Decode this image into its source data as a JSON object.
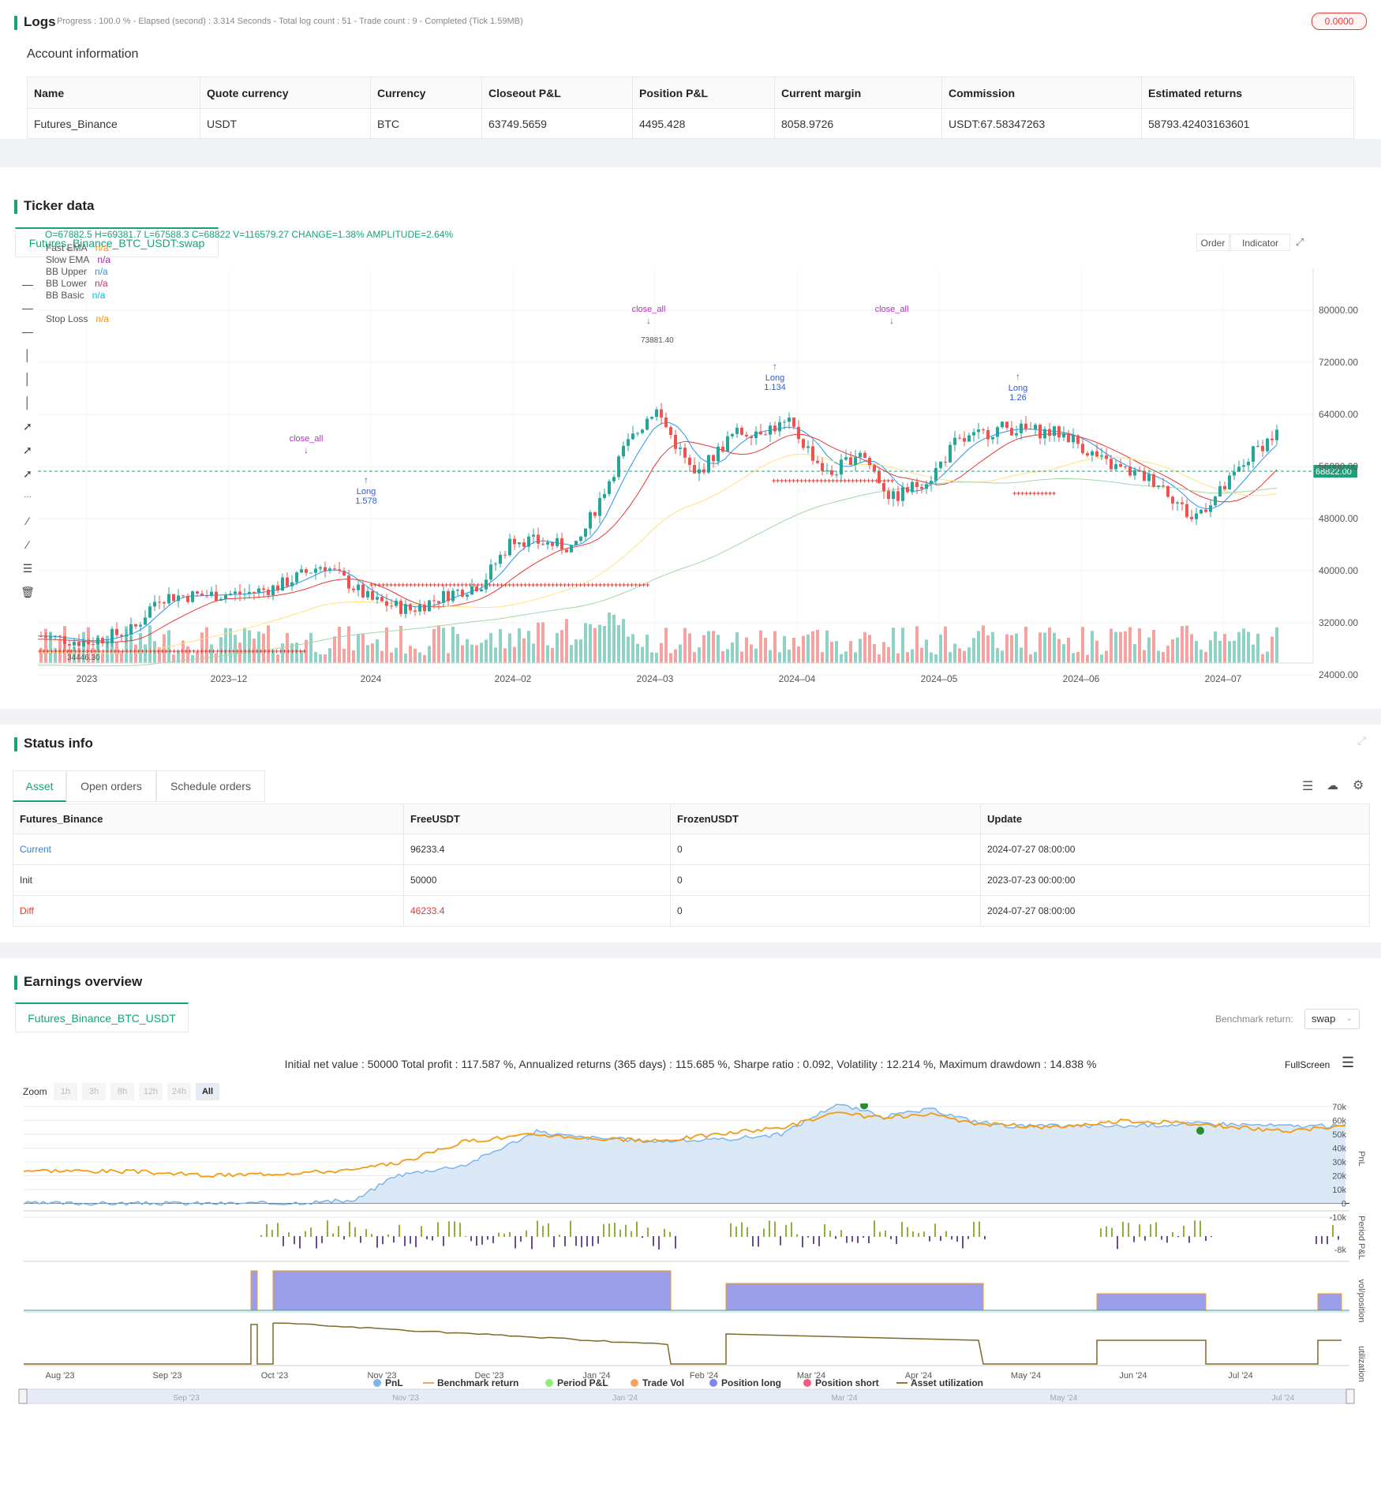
{
  "logs": {
    "title": "Logs",
    "progress": "Progress : 100.0 % - Elapsed (second) : 3.314  Seconds - Total log count : 51 - Trade count : 9 - Completed (Tick 1.59MB)",
    "badge": "0.0000"
  },
  "account": {
    "title": "Account information",
    "headers": [
      "Name",
      "Quote currency",
      "Currency",
      "Closeout P&L",
      "Position P&L",
      "Current margin",
      "Commission",
      "Estimated returns"
    ],
    "row": [
      "Futures_Binance",
      "USDT",
      "BTC",
      "63749.5659",
      "4495.428",
      "8058.9726",
      "USDT:67.58347263",
      "58793.42403163601"
    ]
  },
  "ticker": {
    "title": "Ticker data",
    "tab": "Futures_Binance_BTC_USDT:swap",
    "ohlc": "O=67882.5 H=69381.7 L=67588.3 C=68822 V=116579.27 CHANGE=1.38% AMPLITUDE=2.64%",
    "legend": [
      {
        "name": "Fast EMA",
        "value": "n/a",
        "color": "#f7931a"
      },
      {
        "name": "Slow EMA",
        "value": "n/a",
        "color": "#9c27b0"
      },
      {
        "name": "BB Upper",
        "value": "n/a",
        "color": "#2196f3"
      },
      {
        "name": "BB Lower",
        "value": "n/a",
        "color": "#e91e63"
      },
      {
        "name": "BB Basic",
        "value": "n/a",
        "color": "#00bcd4"
      },
      {
        "name": "Stop Loss",
        "value": "n/a",
        "color": "#f7931a"
      }
    ],
    "buttons": {
      "order": "Order",
      "indicator": "Indicator"
    },
    "price_label": "68822.00",
    "y_ticks": [
      "80000.00",
      "72000.00",
      "64000.00",
      "56000.00",
      "48000.00",
      "40000.00",
      "32000.00",
      "24000.00"
    ],
    "x_ticks": [
      "2023",
      "2023–12",
      "2024",
      "2024–02",
      "2024–03",
      "2024–04",
      "2024–05",
      "2024–06",
      "2024–07"
    ],
    "high_label": "73881.40",
    "low_label": "34446.30",
    "annotations": [
      {
        "text": "close_all"
      },
      {
        "text": "close_all"
      },
      {
        "text": "close_all"
      },
      {
        "text": "Long",
        "sub": "1.578"
      },
      {
        "text": "Long",
        "sub": "1.134"
      },
      {
        "text": "Long",
        "sub": "1.26"
      }
    ]
  },
  "status": {
    "title": "Status info",
    "tabs": [
      "Asset",
      "Open orders",
      "Schedule orders"
    ],
    "headers": [
      "Futures_Binance",
      "FreeUSDT",
      "FrozenUSDT",
      "Update"
    ],
    "rows": [
      [
        "Current",
        "96233.4",
        "0",
        "2024-07-27 08:00:00"
      ],
      [
        "Init",
        "50000",
        "0",
        "2023-07-23 00:00:00"
      ],
      [
        "Diff",
        "46233.4",
        "0",
        "2024-07-27 08:00:00"
      ]
    ]
  },
  "earnings": {
    "title": "Earnings overview",
    "tab": "Futures_Binance_BTC_USDT",
    "benchmark_label": "Benchmark return:",
    "benchmark_value": "swap",
    "summary": "Initial net value : 50000 Total profit : 117.587 %, Annualized returns (365 days) : 115.685 %, Sharpe ratio : 0.092, Volatility : 12.214 %, Maximum drawdown : 14.838 %",
    "fullscreen": "FullScreen",
    "zoom_label": "Zoom",
    "zoom_buttons": [
      "1h",
      "3h",
      "8h",
      "12h",
      "24h",
      "All"
    ],
    "pnl_ticks": [
      "70k",
      "60k",
      "50k",
      "40k",
      "30k",
      "20k",
      "10k",
      "0",
      "-10k"
    ],
    "period_ticks": [
      "-8k"
    ],
    "axis_titles": [
      "PnL",
      "Period P&L",
      "vol/position",
      "utilization"
    ],
    "x_ticks": [
      "Aug '23",
      "Sep '23",
      "Oct '23",
      "Nov '23",
      "Dec '23",
      "Jan '24",
      "Feb '24",
      "Mar '24",
      "Apr '24",
      "May '24",
      "Jun '24",
      "Jul '24"
    ],
    "nav_ticks": [
      "Sep '23",
      "Nov '23",
      "Jan '24",
      "Mar '24",
      "May '24",
      "Jul '24"
    ],
    "legend": [
      {
        "name": "PnL",
        "color": "#7cb5ec"
      },
      {
        "name": "Benchmark return",
        "color": "#f7a35c"
      },
      {
        "name": "Period P&L",
        "color": "#90ed7d"
      },
      {
        "name": "Trade Vol",
        "color": "#f7a35c"
      },
      {
        "name": "Position long",
        "color": "#8085e9"
      },
      {
        "name": "Position short",
        "color": "#f15c80"
      },
      {
        "name": "Asset utilization",
        "color": "#8d7a3a"
      }
    ]
  }
}
